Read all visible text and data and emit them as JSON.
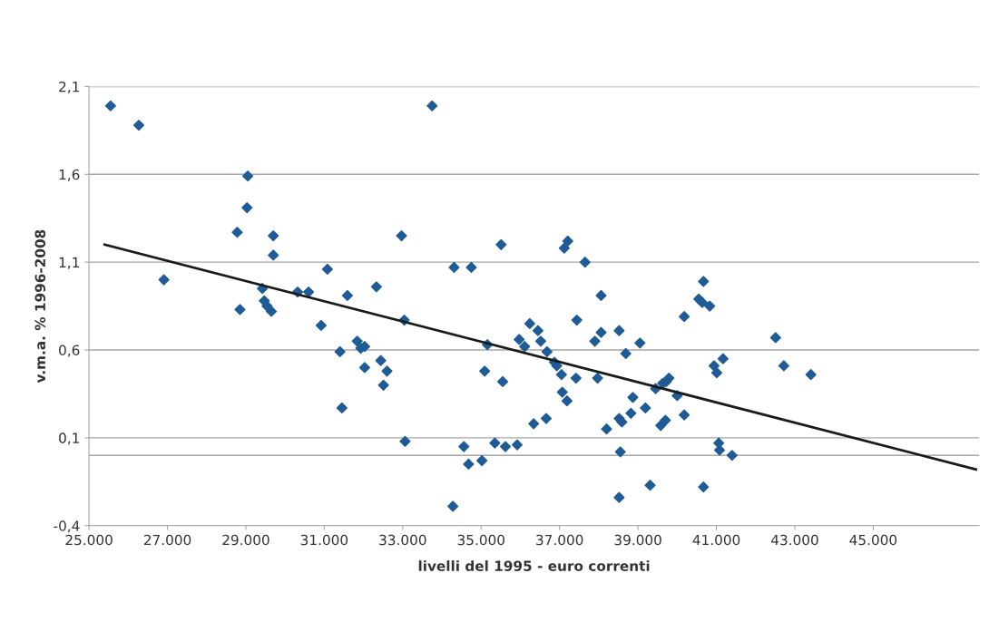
{
  "chart_data": {
    "type": "scatter",
    "xlabel": "livelli del 1995 - euro correnti",
    "ylabel": "v.m.a. % 1996-2008",
    "xlim": [
      25000,
      47700
    ],
    "ylim": [
      -0.4,
      2.1
    ],
    "xticks": [
      {
        "value": 25000,
        "label": "25.000"
      },
      {
        "value": 27000,
        "label": "27.000"
      },
      {
        "value": 29000,
        "label": "29.000"
      },
      {
        "value": 31000,
        "label": "31.000"
      },
      {
        "value": 33000,
        "label": "33.000"
      },
      {
        "value": 35000,
        "label": "35.000"
      },
      {
        "value": 37000,
        "label": "37.000"
      },
      {
        "value": 39000,
        "label": "39.000"
      },
      {
        "value": 41000,
        "label": "41.000"
      },
      {
        "value": 43000,
        "label": "43.000"
      },
      {
        "value": 45000,
        "label": "45.000"
      }
    ],
    "yticks": [
      {
        "value": -0.4,
        "label": "-0,4"
      },
      {
        "value": 0.1,
        "label": "0,1"
      },
      {
        "value": 0.6,
        "label": "0,6"
      },
      {
        "value": 1.1,
        "label": "1,1"
      },
      {
        "value": 1.6,
        "label": "1,6"
      },
      {
        "value": 2.1,
        "label": "2,1"
      }
    ],
    "grid": "y",
    "ref_lines": [
      {
        "axis": "y",
        "value": 0,
        "color": "#a6a6a6"
      }
    ],
    "series": [
      {
        "marker": "diamond",
        "color": "#1f5b94",
        "x": [
          25550,
          26270,
          26910,
          28780,
          28850,
          29050,
          29030,
          29420,
          29470,
          29540,
          29650,
          29700,
          29700,
          30320,
          30600,
          31080,
          30920,
          31590,
          31400,
          31450,
          31840,
          31930,
          32030,
          32030,
          32330,
          32440,
          32510,
          32600,
          32970,
          33040,
          33060,
          33750,
          34310,
          34280,
          34560,
          34680,
          34750,
          35020,
          35090,
          35160,
          35350,
          35510,
          35550,
          35620,
          35920,
          35970,
          36110,
          36240,
          36340,
          36450,
          36520,
          36660,
          36680,
          36870,
          36930,
          37050,
          37070,
          37120,
          37210,
          37190,
          37420,
          37440,
          37650,
          37900,
          37970,
          38060,
          38060,
          38200,
          38520,
          38520,
          38550,
          38520,
          38590,
          38690,
          38820,
          38870,
          39050,
          39190,
          39310,
          39450,
          39580,
          39630,
          39700,
          39720,
          39790,
          40000,
          40180,
          40180,
          40550,
          40640,
          40670,
          40670,
          40830,
          40940,
          41010,
          41060,
          41080,
          41170,
          41400,
          42510,
          42720,
          43410
        ],
        "values": [
          1.99,
          1.88,
          1.0,
          1.27,
          0.83,
          1.59,
          1.41,
          0.95,
          0.88,
          0.85,
          0.82,
          1.25,
          1.14,
          0.93,
          0.93,
          1.06,
          0.74,
          0.91,
          0.59,
          0.27,
          0.65,
          0.61,
          0.62,
          0.5,
          0.96,
          0.54,
          0.4,
          0.48,
          1.25,
          0.77,
          0.08,
          1.99,
          1.07,
          -0.29,
          0.05,
          -0.05,
          1.07,
          -0.03,
          0.48,
          0.63,
          0.07,
          1.2,
          0.42,
          0.05,
          0.06,
          0.66,
          0.62,
          0.75,
          0.18,
          0.71,
          0.65,
          0.21,
          0.59,
          0.53,
          0.51,
          0.46,
          0.36,
          1.18,
          1.22,
          0.31,
          0.44,
          0.77,
          1.1,
          0.65,
          0.44,
          0.91,
          0.7,
          0.15,
          0.71,
          0.21,
          0.02,
          -0.24,
          0.19,
          0.58,
          0.24,
          0.33,
          0.64,
          0.27,
          -0.17,
          0.38,
          0.17,
          0.41,
          0.2,
          0.42,
          0.44,
          0.34,
          0.23,
          0.79,
          0.89,
          0.87,
          0.99,
          -0.18,
          0.85,
          0.51,
          0.47,
          0.07,
          0.03,
          0.55,
          0.0,
          0.67,
          0.51,
          0.46
        ]
      },
      {
        "type": "line",
        "color": "#1a1a1a",
        "x": [
          25400,
          47620
        ],
        "values": [
          1.2,
          -0.08
        ]
      }
    ]
  }
}
